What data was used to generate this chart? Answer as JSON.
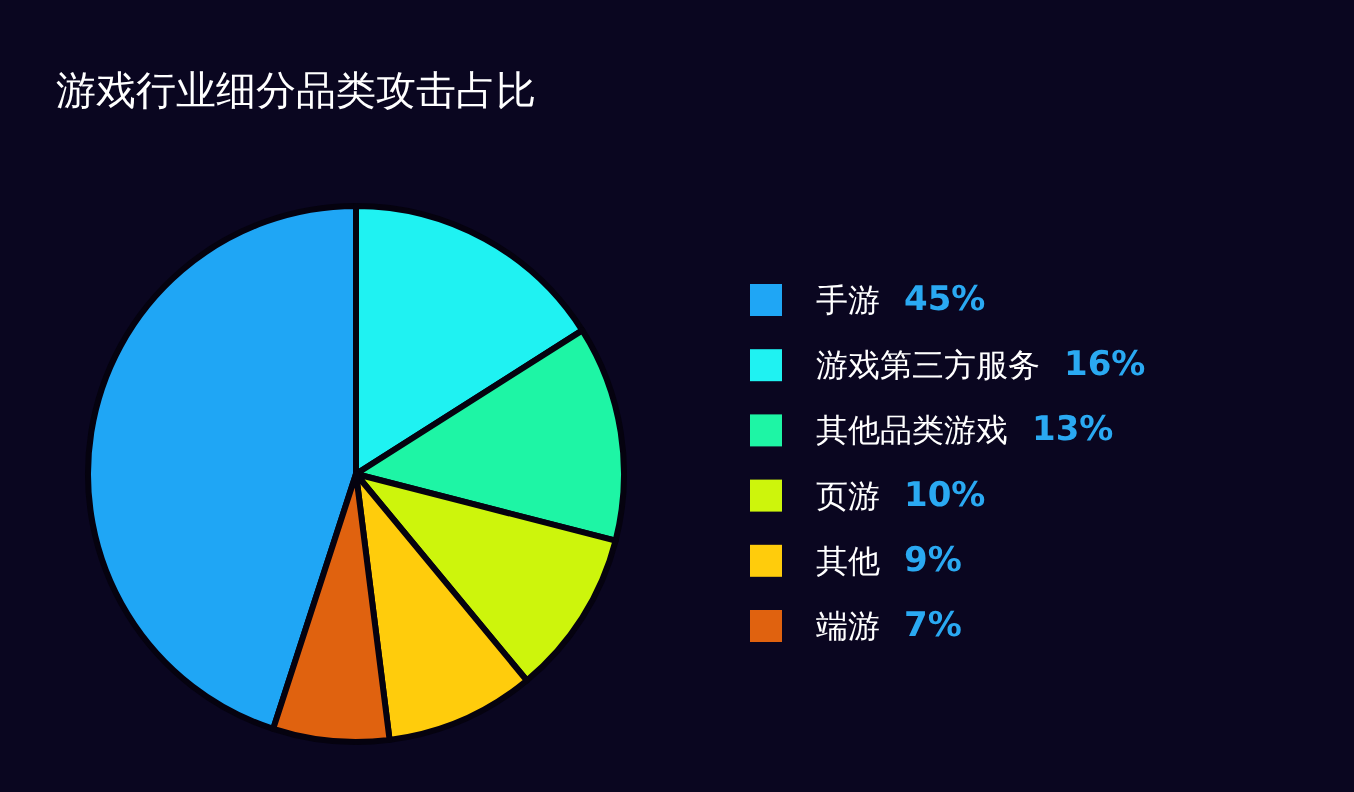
{
  "chart_data": {
    "type": "pie",
    "title": "游戏行业细分品类攻击占比",
    "categories": [
      "手游",
      "游戏第三方服务",
      "其他品类游戏",
      "页游",
      "其他",
      "端游"
    ],
    "values": [
      45,
      16,
      13,
      10,
      9,
      7
    ],
    "value_labels": [
      "45%",
      "16%",
      "13%",
      "10%",
      "9%",
      "7%"
    ],
    "colors": [
      "#1fa6f5",
      "#1ff2f2",
      "#1ef5a5",
      "#cdf50c",
      "#ffcc0c",
      "#e0620f"
    ],
    "legend": "right"
  }
}
